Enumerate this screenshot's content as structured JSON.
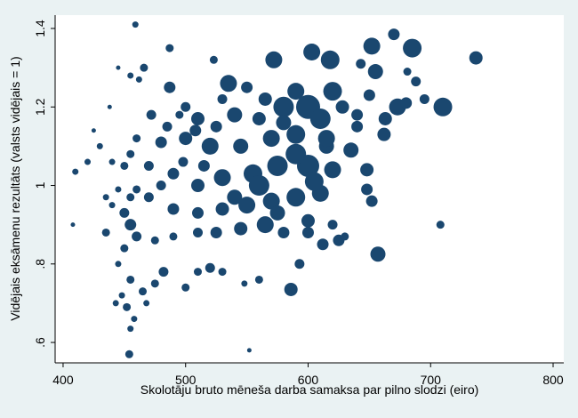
{
  "chart_data": {
    "type": "scatter",
    "xlabel": "Skolotāju bruto mēneša darba samaksa par pilno slodzi (eiro)",
    "ylabel": "Vidējais eksāmenu rezultāts (valsts vidējais = 1)",
    "xlim": [
      393.5,
      808.7
    ],
    "ylim": [
      0.548,
      1.434
    ],
    "xticks": [
      400,
      500,
      600,
      700,
      800
    ],
    "yticks": [
      {
        "value": 0.6,
        "label": ".6"
      },
      {
        "value": 0.8,
        "label": ".8"
      },
      1,
      1.2,
      1.4
    ],
    "series": [
      {
        "color": "#1a476f",
        "x": [
          459,
          487,
          523,
          535,
          572,
          603,
          618,
          652,
          670,
          685,
          737,
          655,
          643,
          681,
          688,
          673,
          710,
          580,
          600,
          610,
          620,
          590,
          565,
          550,
          530,
          500,
          487,
          472,
          510,
          540,
          560,
          628,
          640,
          650,
          663,
          662,
          680,
          695,
          590,
          570,
          545,
          520,
          500,
          480,
          460,
          455,
          450,
          440,
          430,
          420,
          410,
          408,
          425,
          438,
          445,
          455,
          466,
          462,
          470,
          490,
          510,
          530,
          555,
          575,
          600,
          620,
          635,
          648,
          648,
          652,
          610,
          590,
          570,
          550,
          530,
          510,
          490,
          470,
          455,
          445,
          435,
          450,
          455,
          460,
          475,
          490,
          510,
          525,
          545,
          565,
          580,
          600,
          612,
          625,
          630,
          657,
          708,
          593,
          586,
          560,
          548,
          530,
          520,
          510,
          500,
          482,
          475,
          465,
          455,
          448,
          443,
          452,
          468,
          458,
          455,
          454,
          552,
          445,
          450,
          435,
          440,
          460,
          480,
          498,
          515,
          485,
          495,
          508,
          525,
          580,
          615,
          640,
          600,
          575,
          620,
          540,
          560,
          605,
          590,
          615
        ],
        "values": [
          1.41,
          1.35,
          1.32,
          1.26,
          1.32,
          1.34,
          1.32,
          1.355,
          1.385,
          1.35,
          1.325,
          1.29,
          1.31,
          1.29,
          1.265,
          1.2,
          1.2,
          1.2,
          1.2,
          1.17,
          1.24,
          1.24,
          1.22,
          1.25,
          1.22,
          1.2,
          1.25,
          1.18,
          1.17,
          1.18,
          1.17,
          1.2,
          1.18,
          1.23,
          1.17,
          1.13,
          1.21,
          1.22,
          1.13,
          1.12,
          1.1,
          1.1,
          1.12,
          1.11,
          1.12,
          1.08,
          1.05,
          1.06,
          1.1,
          1.06,
          1.035,
          0.9,
          1.14,
          1.2,
          1.3,
          1.28,
          1.3,
          1.27,
          1.05,
          1.03,
          1.0,
          1.02,
          1.03,
          1.05,
          1.05,
          1.04,
          1.09,
          1.04,
          0.99,
          0.96,
          0.98,
          0.97,
          0.96,
          0.95,
          0.94,
          0.93,
          0.94,
          0.97,
          0.97,
          0.99,
          0.97,
          0.93,
          0.9,
          0.87,
          0.86,
          0.87,
          0.88,
          0.88,
          0.89,
          0.9,
          0.88,
          0.88,
          0.85,
          0.86,
          0.87,
          0.825,
          0.9,
          0.8,
          0.735,
          0.76,
          0.75,
          0.78,
          0.79,
          0.78,
          0.74,
          0.78,
          0.75,
          0.73,
          0.76,
          0.72,
          0.7,
          0.69,
          0.7,
          0.66,
          0.635,
          0.57,
          0.58,
          0.8,
          0.84,
          0.88,
          0.95,
          0.99,
          1.0,
          1.06,
          1.05,
          1.15,
          1.18,
          1.14,
          1.15,
          1.16,
          1.1,
          1.15,
          0.91,
          0.93,
          0.9,
          0.97,
          1.0,
          1.01,
          1.08,
          1.12
        ],
        "sizes": [
          2,
          3,
          3,
          8,
          8,
          8,
          9,
          8,
          5,
          9,
          6,
          7,
          4,
          3,
          4,
          8,
          9,
          10,
          12,
          10,
          9,
          8,
          6,
          5,
          4,
          4,
          5,
          4,
          6,
          7,
          6,
          6,
          5,
          5,
          6,
          6,
          5,
          4,
          9,
          8,
          7,
          8,
          6,
          5,
          3,
          3,
          3,
          2,
          2,
          2,
          2,
          1,
          1,
          1,
          1,
          2,
          3,
          2,
          4,
          5,
          6,
          8,
          9,
          10,
          11,
          8,
          7,
          6,
          5,
          5,
          8,
          9,
          8,
          8,
          6,
          5,
          5,
          4,
          3,
          2,
          2,
          4,
          5,
          4,
          3,
          3,
          4,
          5,
          6,
          8,
          5,
          5,
          5,
          5,
          3,
          7,
          3,
          4,
          6,
          3,
          2,
          3,
          4,
          3,
          3,
          4,
          3,
          3,
          3,
          2,
          2,
          3,
          2,
          2,
          2,
          3,
          1,
          2,
          3,
          3,
          2,
          3,
          4,
          4,
          5,
          4,
          3,
          5,
          5,
          7,
          7,
          5,
          6,
          7,
          4,
          7,
          10,
          9,
          10,
          8
        ]
      }
    ]
  }
}
